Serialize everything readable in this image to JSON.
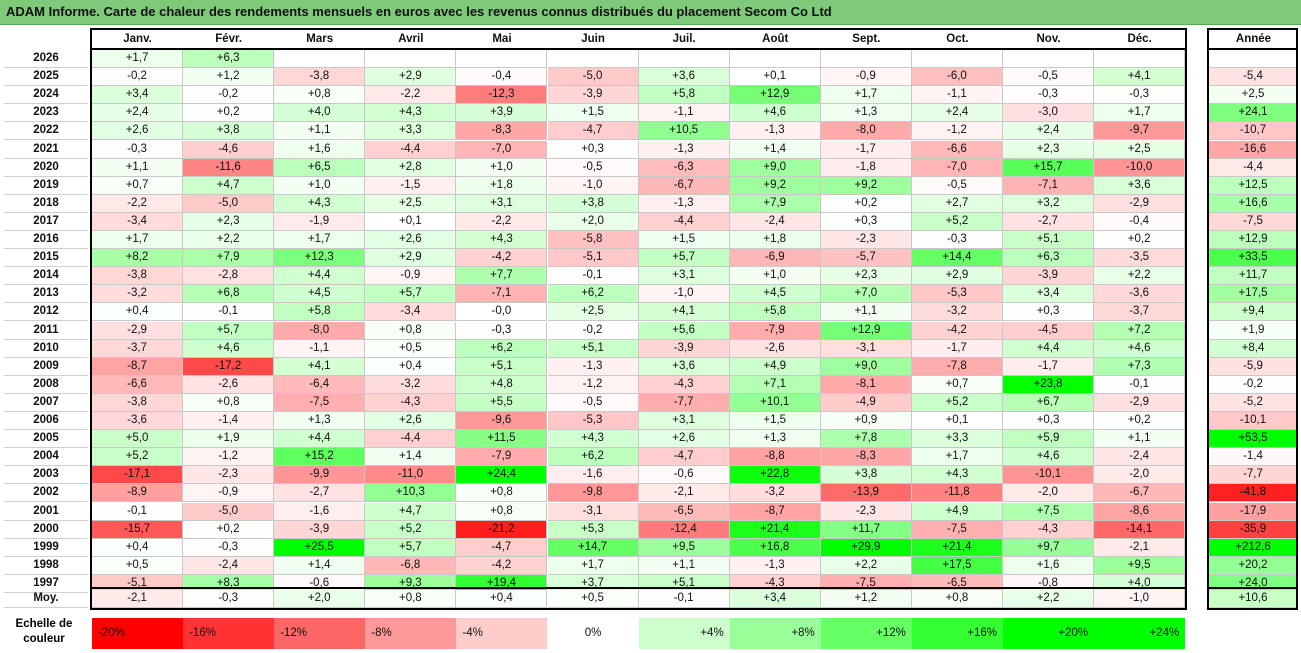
{
  "title": "ADAM Informe. Carte de chaleur des rendements mensuels en euros avec les revenus connus distribués du placement Secom Co Ltd",
  "chart_data": {
    "type": "heatmap",
    "months": [
      "Janv.",
      "Févr.",
      "Mars",
      "Avril",
      "Mai",
      "Juin",
      "Juil.",
      "Août",
      "Sept.",
      "Oct.",
      "Nov.",
      "Déc."
    ],
    "annual_header": "Année",
    "avg_label": "Moy.",
    "rows": [
      {
        "year": "2026",
        "values": [
          "+1,7",
          "+6,3",
          null,
          null,
          null,
          null,
          null,
          null,
          null,
          null,
          null,
          null
        ],
        "annual": null
      },
      {
        "year": "2025",
        "values": [
          "-0,2",
          "+1,2",
          "-3,8",
          "+2,9",
          "-0,4",
          "-5,0",
          "+3,6",
          "+0,1",
          "-0,9",
          "-6,0",
          "-0,5",
          "+4,1"
        ],
        "annual": "-5,4"
      },
      {
        "year": "2024",
        "values": [
          "+3,4",
          "-0,2",
          "+0,8",
          "-2,2",
          "-12,3",
          "-3,9",
          "+5,8",
          "+12,9",
          "+1,7",
          "-1,1",
          "-0,3",
          "-0,3"
        ],
        "annual": "+2,5"
      },
      {
        "year": "2023",
        "values": [
          "+2,4",
          "+0,2",
          "+4,0",
          "+4,3",
          "+3,9",
          "+1,5",
          "-1,1",
          "+4,6",
          "+1,3",
          "+2,4",
          "-3,0",
          "+1,7"
        ],
        "annual": "+24,1"
      },
      {
        "year": "2022",
        "values": [
          "+2,6",
          "+3,8",
          "+1,1",
          "+3,3",
          "-8,3",
          "-4,7",
          "+10,5",
          "-1,3",
          "-8,0",
          "-1,2",
          "+2,4",
          "-9,7"
        ],
        "annual": "-10,7"
      },
      {
        "year": "2021",
        "values": [
          "-0,3",
          "-4,6",
          "+1,6",
          "-4,4",
          "-7,0",
          "+0,3",
          "-1,3",
          "+1,4",
          "-1,7",
          "-6,6",
          "+2,3",
          "+2,5"
        ],
        "annual": "-16,6"
      },
      {
        "year": "2020",
        "values": [
          "+1,1",
          "-11,6",
          "+6,5",
          "+2,8",
          "+1,0",
          "-0,5",
          "-6,3",
          "+9,0",
          "-1,8",
          "-7,0",
          "+15,7",
          "-10,0"
        ],
        "annual": "-4,4"
      },
      {
        "year": "2019",
        "values": [
          "+0,7",
          "+4,7",
          "+1,0",
          "-1,5",
          "+1,8",
          "-1,0",
          "-6,7",
          "+9,2",
          "+9,2",
          "-0,5",
          "-7,1",
          "+3,6"
        ],
        "annual": "+12,5"
      },
      {
        "year": "2018",
        "values": [
          "-2,2",
          "-5,0",
          "+4,3",
          "+2,5",
          "+3,1",
          "+3,8",
          "-1,3",
          "+7,9",
          "+0,2",
          "+2,7",
          "+3,2",
          "-2,9"
        ],
        "annual": "+16,6"
      },
      {
        "year": "2017",
        "values": [
          "-3,4",
          "+2,3",
          "-1,9",
          "+0,1",
          "-2,2",
          "+2,0",
          "-4,4",
          "-2,4",
          "+0,3",
          "+5,2",
          "-2,7",
          "-0,4"
        ],
        "annual": "-7,5"
      },
      {
        "year": "2016",
        "values": [
          "+1,7",
          "+2,2",
          "+1,7",
          "+2,6",
          "+4,3",
          "-5,8",
          "+1,5",
          "+1,8",
          "-2,3",
          "-0,3",
          "+5,1",
          "+0,2"
        ],
        "annual": "+12,9"
      },
      {
        "year": "2015",
        "values": [
          "+8,2",
          "+7,9",
          "+12,3",
          "+2,9",
          "-4,2",
          "-5,1",
          "+5,7",
          "-6,9",
          "-5,7",
          "+14,4",
          "+6,3",
          "-3,5"
        ],
        "annual": "+33,5"
      },
      {
        "year": "2014",
        "values": [
          "-3,8",
          "-2,8",
          "+4,4",
          "-0,9",
          "+7,7",
          "-0,1",
          "+3,1",
          "+1,0",
          "+2,3",
          "+2,9",
          "-3,9",
          "+2,2"
        ],
        "annual": "+11,7"
      },
      {
        "year": "2013",
        "values": [
          "-3,2",
          "+6,8",
          "+4,5",
          "+5,7",
          "-7,1",
          "+6,2",
          "-1,0",
          "+4,5",
          "+7,0",
          "-5,3",
          "+3,4",
          "-3,6"
        ],
        "annual": "+17,5"
      },
      {
        "year": "2012",
        "values": [
          "+0,4",
          "-0,1",
          "+5,8",
          "-3,4",
          "-0,0",
          "+2,5",
          "+4,1",
          "+5,8",
          "+1,1",
          "-3,2",
          "+0,3",
          "-3,7"
        ],
        "annual": "+9,4"
      },
      {
        "year": "2011",
        "values": [
          "-2,9",
          "+5,7",
          "-8,0",
          "+0,8",
          "-0,3",
          "-0,2",
          "+5,6",
          "-7,9",
          "+12,9",
          "-4,2",
          "-4,5",
          "+7,2"
        ],
        "annual": "+1,9"
      },
      {
        "year": "2010",
        "values": [
          "-3,7",
          "+4,6",
          "-1,1",
          "+0,5",
          "+6,2",
          "+5,1",
          "-3,9",
          "-2,6",
          "-3,1",
          "-1,7",
          "+4,4",
          "+4,6"
        ],
        "annual": "+8,4"
      },
      {
        "year": "2009",
        "values": [
          "-8,7",
          "-17,2",
          "+4,1",
          "+0,4",
          "+5,1",
          "-1,3",
          "+3,6",
          "+4,9",
          "+9,0",
          "-7,8",
          "-1,7",
          "+7,3"
        ],
        "annual": "-5,9"
      },
      {
        "year": "2008",
        "values": [
          "-6,6",
          "-2,6",
          "-6,4",
          "-3,2",
          "+4,8",
          "-1,2",
          "-4,3",
          "+7,1",
          "-8,1",
          "+0,7",
          "+23,8",
          "-0,1"
        ],
        "annual": "-0,2"
      },
      {
        "year": "2007",
        "values": [
          "-3,8",
          "+0,8",
          "-7,5",
          "-4,3",
          "+5,5",
          "-0,5",
          "-7,7",
          "+10,1",
          "-4,9",
          "+5,2",
          "+6,7",
          "-2,9"
        ],
        "annual": "-5,2"
      },
      {
        "year": "2006",
        "values": [
          "-3,6",
          "-1,4",
          "+1,3",
          "+2,6",
          "-9,6",
          "-5,3",
          "+3,1",
          "+1,5",
          "+0,9",
          "+0,1",
          "+0,3",
          "+0,2"
        ],
        "annual": "-10,1"
      },
      {
        "year": "2005",
        "values": [
          "+5,0",
          "+1,9",
          "+4,4",
          "-4,4",
          "+11,5",
          "+4,3",
          "+2,6",
          "+1,3",
          "+7,8",
          "+3,3",
          "+5,9",
          "+1,1"
        ],
        "annual": "+53,5"
      },
      {
        "year": "2004",
        "values": [
          "+5,2",
          "-1,2",
          "+15,2",
          "+1,4",
          "-7,9",
          "+6,2",
          "-4,7",
          "-8,8",
          "-8,3",
          "+1,7",
          "+4,6",
          "-2,4"
        ],
        "annual": "-1,4"
      },
      {
        "year": "2003",
        "values": [
          "-17,1",
          "-2,3",
          "-9,9",
          "-11,0",
          "+24,4",
          "-1,6",
          "-0,6",
          "+22,8",
          "+3,8",
          "+4,3",
          "-10,1",
          "-2,0"
        ],
        "annual": "-7,7"
      },
      {
        "year": "2002",
        "values": [
          "-8,9",
          "-0,9",
          "-2,7",
          "+10,3",
          "+0,8",
          "-9,8",
          "-2,1",
          "-3,2",
          "-13,9",
          "-11,8",
          "-2,0",
          "-6,7"
        ],
        "annual": "-41,8"
      },
      {
        "year": "2001",
        "values": [
          "-0,1",
          "-5,0",
          "-1,6",
          "+4,7",
          "+0,8",
          "-3,1",
          "-6,5",
          "-8,7",
          "-2,3",
          "+4,9",
          "+7,5",
          "-8,6"
        ],
        "annual": "-17,9"
      },
      {
        "year": "2000",
        "values": [
          "-15,7",
          "+0,2",
          "-3,9",
          "+5,2",
          "-21,2",
          "+5,3",
          "-12,4",
          "+21,4",
          "+11,7",
          "-7,5",
          "-4,3",
          "-14,1"
        ],
        "annual": "-35,9"
      },
      {
        "year": "1999",
        "values": [
          "+0,4",
          "-0,3",
          "+25,5",
          "+5,7",
          "-4,7",
          "+14,7",
          "+9,5",
          "+16,8",
          "+29,9",
          "+21,4",
          "+9,7",
          "-2,1"
        ],
        "annual": "+212,6"
      },
      {
        "year": "1998",
        "values": [
          "+0,5",
          "-2,4",
          "+1,4",
          "-6,8",
          "-4,2",
          "+1,7",
          "+1,1",
          "-1,3",
          "+2,2",
          "+17,5",
          "+1,6",
          "+9,5"
        ],
        "annual": "+20,2"
      },
      {
        "year": "1997",
        "values": [
          "-5,1",
          "+8,3",
          "-0,6",
          "+9,3",
          "+19,4",
          "+3,7",
          "+5,1",
          "-4,3",
          "-7,5",
          "-6,5",
          "-0,8",
          "+4,0"
        ],
        "annual": "+24,0"
      }
    ],
    "averages": [
      "-2,1",
      "-0,3",
      "+2,0",
      "+0,8",
      "+0,4",
      "+0,5",
      "-0,1",
      "+3,4",
      "+1,2",
      "+0,8",
      "+2,2",
      "-1,0"
    ],
    "average_annual": "+10,6",
    "scale_label": "Echelle de couleur",
    "scale": [
      {
        "label": "-20%",
        "value": -20,
        "color": "#ff0000"
      },
      {
        "label": "-16%",
        "value": -16,
        "color": "#ff3333"
      },
      {
        "label": "-12%",
        "value": -12,
        "color": "#ff6666"
      },
      {
        "label": "-8%",
        "value": -8,
        "color": "#ff9999"
      },
      {
        "label": "-4%",
        "value": -4,
        "color": "#ffcccc"
      },
      {
        "label": "0%",
        "value": 0,
        "color": "#ffffff"
      },
      {
        "label": "+4%",
        "value": 4,
        "color": "#ccffcc"
      },
      {
        "label": "+8%",
        "value": 8,
        "color": "#99ff99"
      },
      {
        "label": "+12%",
        "value": 12,
        "color": "#66ff66"
      },
      {
        "label": "+16%",
        "value": 16,
        "color": "#33ff33"
      },
      {
        "label": "+20%",
        "value": 20,
        "color": "#00ff00"
      },
      {
        "label": "+24%",
        "value": 24,
        "color": "#00ff00"
      }
    ]
  }
}
